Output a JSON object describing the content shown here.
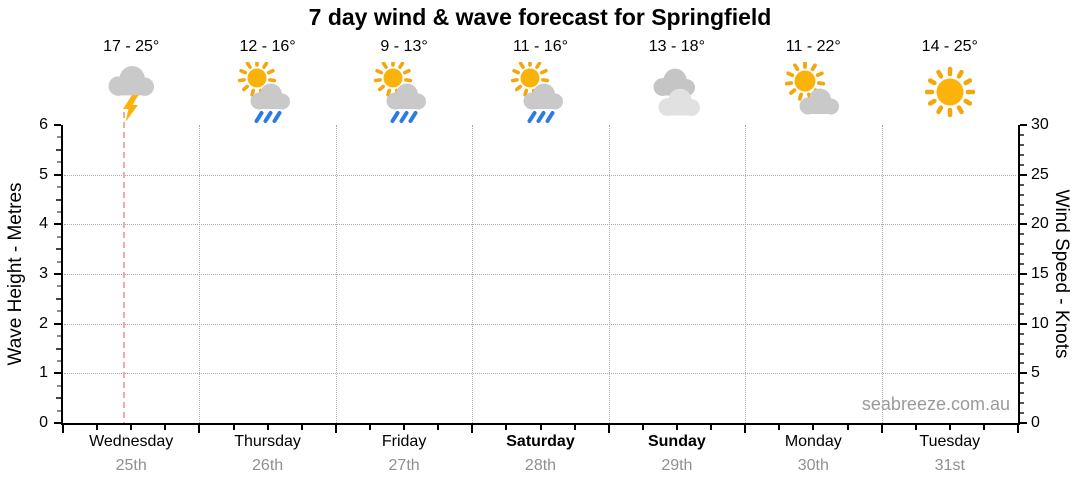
{
  "title": "7 day wind & wave forecast for Springfield",
  "watermark": "seabreeze.com.au",
  "colors": {
    "sun": "#FBB30B",
    "sun_rays": "#F2A70D",
    "cloud": "#C9C9C9",
    "cloud_back": "#C5C5C5",
    "cloud_light": "#E1E1E1",
    "rain": "#2B7BE4",
    "lightning": "#FBB30B",
    "gridline": "#AAAAAA",
    "now_line": "#F7A9A6",
    "date_text": "#909090",
    "axis": "#000000"
  },
  "chart_data": {
    "type": "forecast-chart",
    "title": "7 day wind & wave forecast for Springfield",
    "days": [
      {
        "name": "Wednesday",
        "date": "25th",
        "temp_range": "17 - 25°",
        "icon": "thunderstorm",
        "weekend": false
      },
      {
        "name": "Thursday",
        "date": "26th",
        "temp_range": "12 - 16°",
        "icon": "sun-cloud-rain",
        "weekend": false
      },
      {
        "name": "Friday",
        "date": "27th",
        "temp_range": "9 - 13°",
        "icon": "sun-cloud-rain",
        "weekend": false
      },
      {
        "name": "Saturday",
        "date": "28th",
        "temp_range": "11 - 16°",
        "icon": "sun-cloud-rain",
        "weekend": true
      },
      {
        "name": "Sunday",
        "date": "29th",
        "temp_range": "13 - 18°",
        "icon": "cloudy",
        "weekend": true
      },
      {
        "name": "Monday",
        "date": "30th",
        "temp_range": "11 - 22°",
        "icon": "sun-cloud",
        "weekend": false
      },
      {
        "name": "Tuesday",
        "date": "31st",
        "temp_range": "14 - 25°",
        "icon": "sunny",
        "weekend": false
      }
    ],
    "left_axis": {
      "label": "Wave Height - Metres",
      "min": 0,
      "max": 6,
      "major_ticks": [
        0,
        1,
        2,
        3,
        4,
        5,
        6
      ],
      "minor_step": 0.25,
      "gridlines": [
        1,
        2,
        3,
        4,
        5
      ]
    },
    "right_axis": {
      "label": "Wind Speed - Knots",
      "min": 0,
      "max": 30,
      "major_ticks": [
        0,
        5,
        10,
        15,
        20,
        25,
        30
      ],
      "minor_step": 1
    },
    "x_axis": {
      "minor_ticks_per_day": 4,
      "day_boundary_gridlines": true
    },
    "series": [],
    "grid": true,
    "legend_position": "none",
    "now_marker": {
      "day_index": 0,
      "fraction_of_day": 0.45
    }
  }
}
